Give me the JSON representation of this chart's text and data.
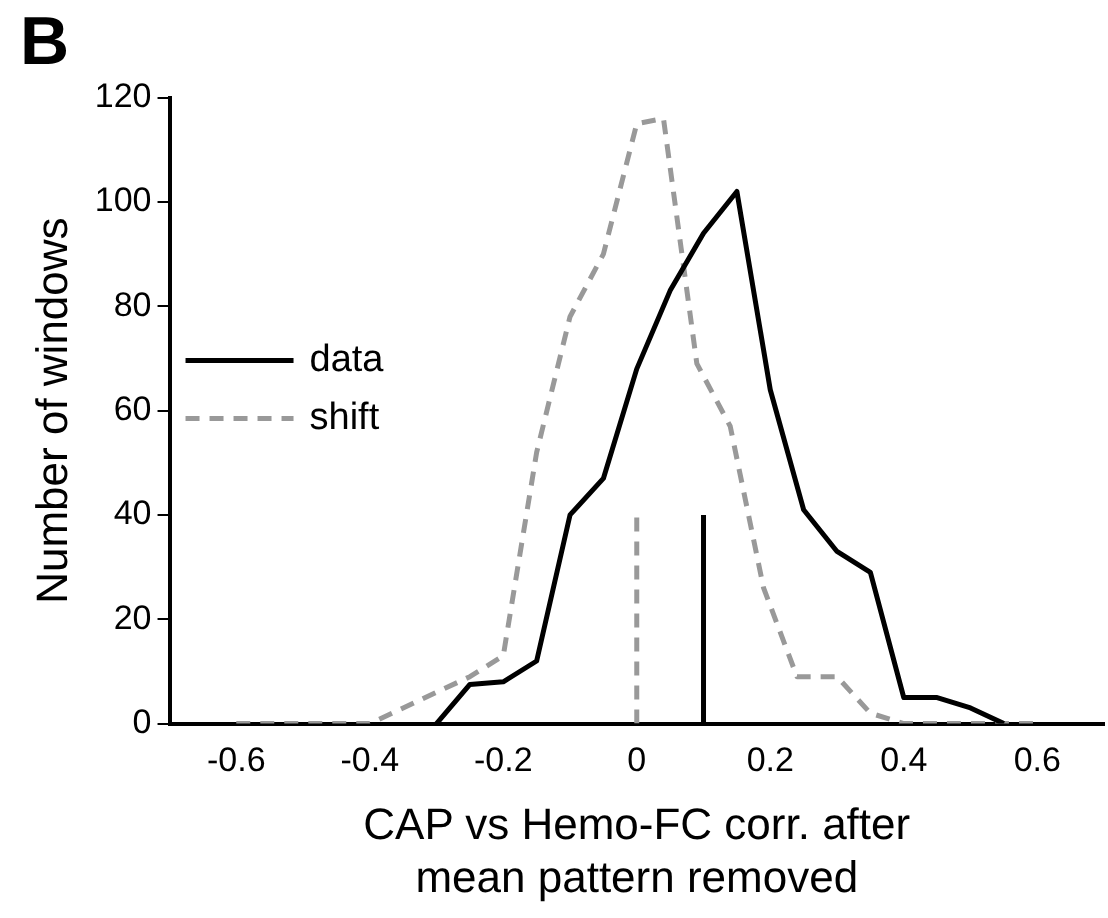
{
  "chart_data": {
    "type": "line",
    "title": "B",
    "xlabel": "CAP vs Hemo-FC corr. after mean pattern removed",
    "ylabel": "Number of windows",
    "xlim": [
      -0.7,
      0.7
    ],
    "xticks": [
      -0.6,
      -0.4,
      -0.2,
      0,
      0.2,
      0.4,
      0.6
    ],
    "ylim": [
      0,
      120
    ],
    "yticks": [
      0,
      20,
      40,
      60,
      80,
      100,
      120
    ],
    "grid": false,
    "legend": "left",
    "marker": "none",
    "series": [
      {
        "name": "data",
        "color": "#000000",
        "line_style": "solid",
        "x": [
          -0.3,
          -0.25,
          -0.2,
          -0.15,
          -0.1,
          -0.05,
          0,
          0.05,
          0.1,
          0.15,
          0.2,
          0.25,
          0.3,
          0.35,
          0.4,
          0.45,
          0.5,
          0.55
        ],
        "values": [
          0,
          7.5,
          8,
          12,
          40,
          47,
          68,
          83,
          94,
          102,
          64,
          41,
          33,
          29,
          5,
          5,
          3,
          0
        ]
      },
      {
        "name": "shift",
        "color": "#999999",
        "line_style": "dashed",
        "x": [
          -0.6,
          -0.55,
          -0.5,
          -0.45,
          -0.4,
          -0.35,
          -0.3,
          -0.25,
          -0.2,
          -0.15,
          -0.1,
          -0.05,
          0,
          0.04,
          0.09,
          0.14,
          0.19,
          0.24,
          0.3,
          0.35,
          0.4,
          0.45,
          0.5,
          0.55,
          0.6
        ],
        "values": [
          0,
          0,
          0,
          0,
          0,
          3,
          6,
          9,
          13,
          52,
          78,
          90,
          115,
          116,
          69,
          57,
          26,
          9,
          9,
          2,
          0,
          0,
          0,
          0,
          0
        ]
      },
      {
        "color": "#000000",
        "line_style": "solid",
        "x": [
          0.1,
          0.1
        ],
        "values": [
          0,
          40
        ]
      },
      {
        "color": "#999999",
        "line_style": "dashed",
        "x": [
          0,
          0
        ],
        "values": [
          0,
          40
        ]
      }
    ]
  }
}
